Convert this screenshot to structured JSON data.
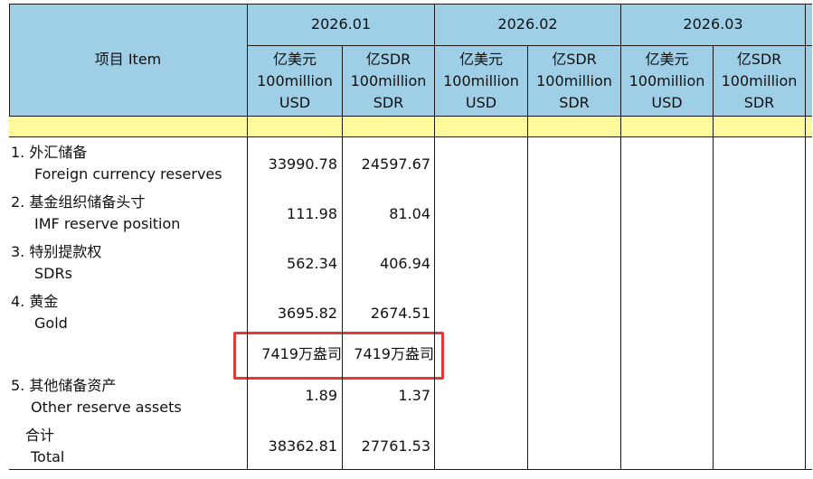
{
  "header": {
    "item_label": "项目 Item",
    "months": [
      "2026.01",
      "2026.02",
      "2026.03"
    ],
    "units": [
      "亿美元\n100million\nUSD",
      "亿SDR\n100million\nSDR"
    ]
  },
  "rows": [
    {
      "zh": "1. 外汇储备",
      "en": "Foreign currency reserves",
      "usd": "33990.78",
      "sdr": "24597.67"
    },
    {
      "zh": "2. 基金组织储备头寸",
      "en": "IMF reserve position",
      "usd": "111.98",
      "sdr": "81.04"
    },
    {
      "zh": "3. 特别提款权",
      "en": "SDRs",
      "usd": "562.34",
      "sdr": "406.94"
    },
    {
      "zh": "4. 黄金",
      "en": "Gold",
      "usd": "3695.82",
      "sdr": "2674.51"
    },
    {
      "zh": "",
      "en": "",
      "usd": "7419万盎司",
      "sdr": "7419万盎司"
    },
    {
      "zh": "5. 其他储备资产",
      "en": "Other reserve assets",
      "usd": "1.89",
      "sdr": "1.37"
    },
    {
      "zh": "合计",
      "en": "Total",
      "usd": "38362.81",
      "sdr": "27761.53"
    }
  ],
  "colors": {
    "header_bg": "#9ecfe6",
    "strip_bg": "#fffb9c",
    "highlight": "#e53935"
  }
}
